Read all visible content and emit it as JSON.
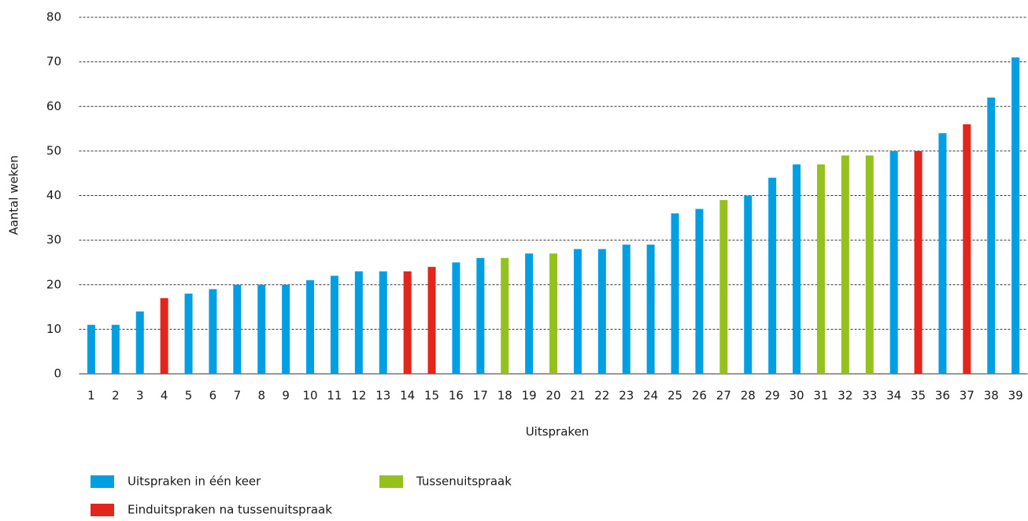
{
  "chart_data": {
    "type": "bar",
    "x_label": "Uitspraken",
    "y_label": "Aantal weken",
    "categories": [
      "1",
      "2",
      "3",
      "4",
      "5",
      "6",
      "7",
      "8",
      "9",
      "10",
      "11",
      "12",
      "13",
      "14",
      "15",
      "16",
      "17",
      "18",
      "19",
      "20",
      "21",
      "22",
      "23",
      "24",
      "25",
      "26",
      "27",
      "28",
      "29",
      "30",
      "31",
      "32",
      "33",
      "34",
      "35",
      "36",
      "37",
      "38",
      "39"
    ],
    "series": [
      {
        "name": "Uitspraken in één keer",
        "color": "#009fe3",
        "values": [
          11,
          11,
          14,
          null,
          18,
          19,
          20,
          20,
          20,
          21,
          22,
          23,
          23,
          null,
          null,
          25,
          26,
          null,
          27,
          null,
          28,
          28,
          29,
          29,
          36,
          37,
          null,
          40,
          44,
          47,
          null,
          null,
          null,
          50,
          null,
          54,
          null,
          62,
          71
        ]
      },
      {
        "name": "Tussenuitspraak",
        "color": "#95c11f",
        "values": [
          null,
          null,
          null,
          null,
          null,
          null,
          null,
          null,
          null,
          null,
          null,
          null,
          null,
          null,
          null,
          null,
          null,
          26,
          null,
          27,
          null,
          null,
          null,
          null,
          null,
          null,
          39,
          null,
          null,
          null,
          47,
          49,
          49,
          null,
          null,
          null,
          null,
          null,
          null
        ]
      },
      {
        "name": "Einduitspraken na tussenuitspraak",
        "color": "#e3251b",
        "values": [
          null,
          null,
          null,
          17,
          null,
          null,
          null,
          null,
          null,
          null,
          null,
          null,
          null,
          23,
          24,
          null,
          null,
          null,
          null,
          null,
          null,
          null,
          null,
          null,
          null,
          null,
          null,
          null,
          null,
          null,
          null,
          null,
          null,
          null,
          50,
          null,
          56,
          null,
          null
        ]
      }
    ],
    "ylim": [
      0,
      80
    ],
    "yticks": [
      0,
      10,
      20,
      30,
      40,
      50,
      60,
      70,
      80
    ],
    "grid": true
  }
}
